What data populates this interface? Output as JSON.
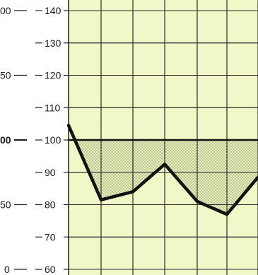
{
  "chart_data": {
    "type": "line",
    "title": "",
    "xlabel": "",
    "ylabel": "",
    "ylim": [
      60,
      140
    ],
    "grid": true,
    "baseline": 100,
    "yticks": [
      "140",
      "130",
      "120",
      "110",
      "100",
      "90",
      "80",
      "70",
      "60"
    ],
    "left_ticks": [
      "00",
      "50",
      "00",
      "50",
      "0"
    ],
    "x": [
      0,
      1,
      2,
      3,
      4,
      5,
      6
    ],
    "series": [
      {
        "values": [
          104.5,
          81.5,
          84,
          92.5,
          81,
          77,
          88.5
        ]
      }
    ],
    "colors": {
      "plot_bg": "#f1f8c8",
      "grid": "#2a2a2a",
      "line": "#111111",
      "fill": "#9a9a7a"
    }
  }
}
